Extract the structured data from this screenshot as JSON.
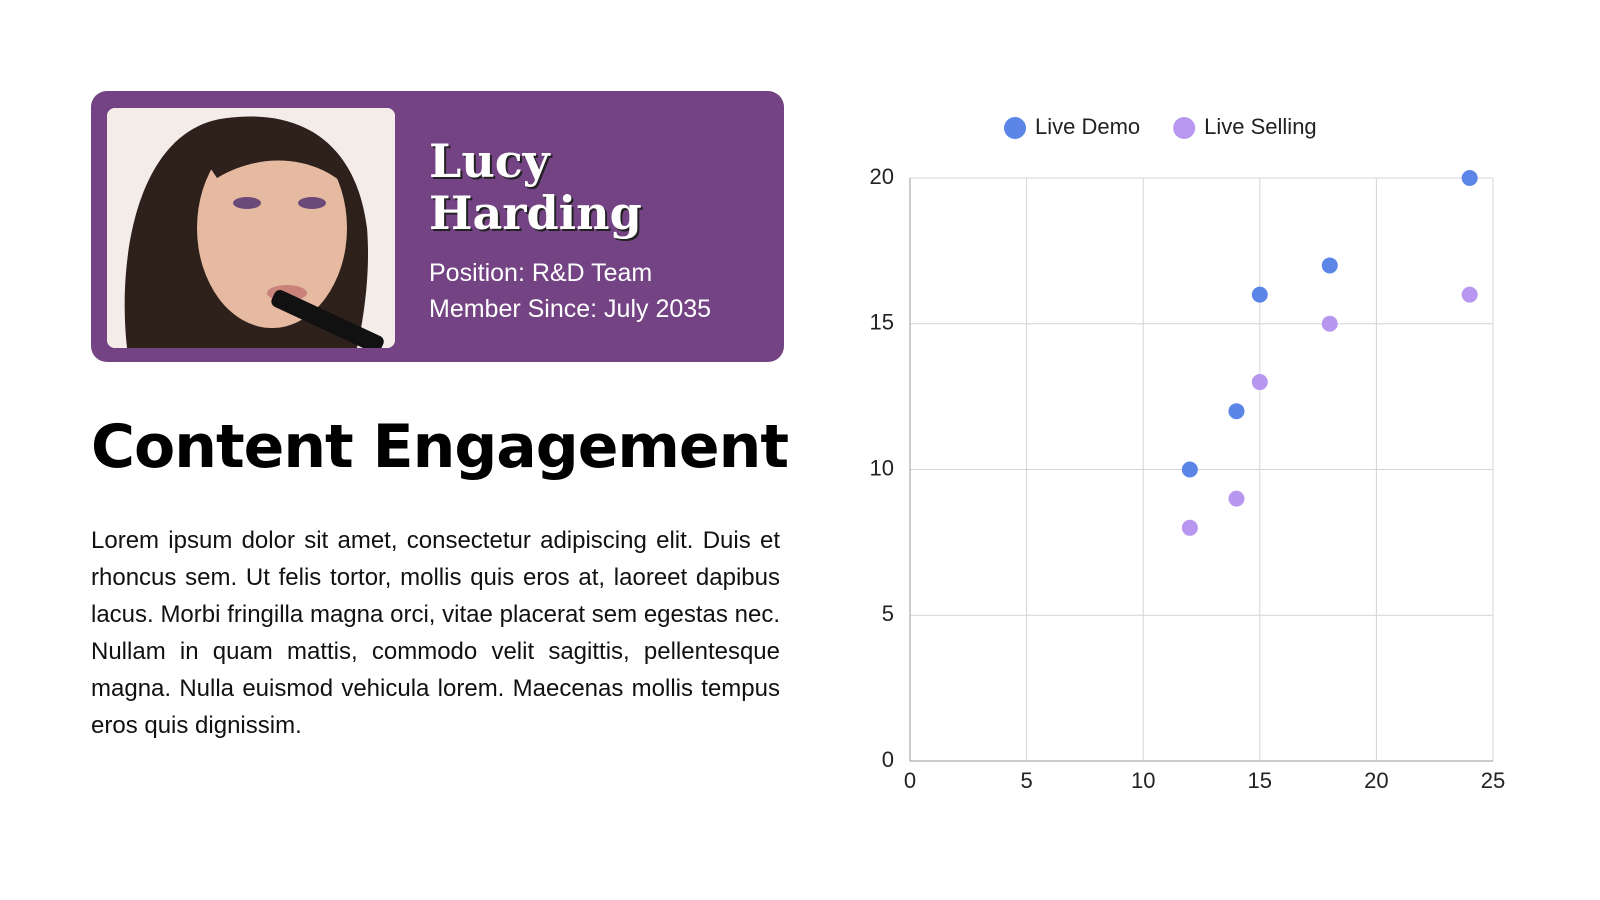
{
  "profile": {
    "name": "Lucy Harding",
    "position": "Position: R&D Team",
    "member_since": "Member Since: July 2035"
  },
  "heading": "Content Engagement",
  "body": "Lorem ipsum dolor sit amet, consectetur adipiscing elit. Duis et rhoncus sem. Ut felis tortor, mollis quis eros at, laoreet dapibus lacus. Morbi fringilla magna orci, vitae placerat sem egestas nec. Nullam in quam mattis, commodo velit sagittis, pellentesque magna. Nulla euismod vehicula lorem. Maecenas mollis tempus eros quis dignissim.",
  "chart_data": {
    "type": "scatter",
    "series": [
      {
        "name": "Live Demo",
        "color": "#5b86e8",
        "x": [
          12,
          14,
          15,
          18,
          24
        ],
        "values": [
          10,
          12,
          16,
          17,
          20
        ]
      },
      {
        "name": "Live Selling",
        "color": "#b797f0",
        "x": [
          12,
          14,
          15,
          18,
          24
        ],
        "values": [
          8,
          9,
          13,
          15,
          16
        ]
      }
    ],
    "xlim": [
      0,
      25
    ],
    "xticks": [
      0,
      5,
      10,
      15,
      20,
      25
    ],
    "ylim": [
      0,
      20
    ],
    "yticks": [
      0,
      5,
      10,
      15,
      20
    ],
    "grid": true,
    "legend": "top"
  }
}
